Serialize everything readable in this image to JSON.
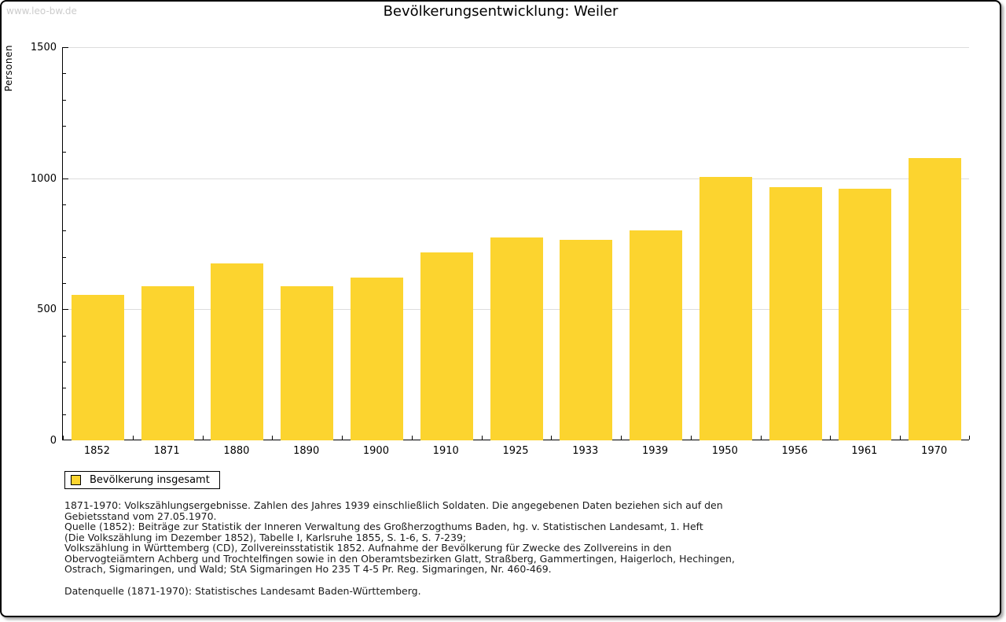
{
  "watermark": "www.leo-bw.de",
  "chart_data": {
    "type": "bar",
    "title": "Bevölkerungsentwicklung: Weiler",
    "ylabel": "Personen",
    "ylim": [
      0,
      1500
    ],
    "ytick_major_step": 500,
    "ytick_minor_step": 100,
    "grid": "horizontal gridlines at 500, 1000, 1500",
    "legend_position": "bottom-left",
    "categories": [
      "1852",
      "1871",
      "1880",
      "1890",
      "1900",
      "1910",
      "1925",
      "1933",
      "1939",
      "1950",
      "1956",
      "1961",
      "1970"
    ],
    "series": [
      {
        "name": "Bevölkerung insgesamt",
        "values": [
          555,
          587,
          676,
          587,
          620,
          718,
          775,
          764,
          800,
          1006,
          965,
          961,
          1076
        ]
      }
    ],
    "bar_color": "#FCD42F",
    "gridline_color": "#dddddd"
  },
  "legend": {
    "label": "Bevölkerung insgesamt"
  },
  "footnotes": {
    "lines": [
      "1871-1970: Volkszählungsergebnisse. Zahlen des Jahres 1939 einschließlich Soldaten. Die angegebenen Daten beziehen sich auf den",
      "Gebietsstand vom 27.05.1970.",
      "Quelle (1852): Beiträge zur Statistik der Inneren Verwaltung des Großherzogthums Baden, hg. v. Statistischen Landesamt, 1. Heft",
      "(Die Volkszählung im Dezember 1852), Tabelle I, Karlsruhe 1855, S. 1-6, S. 7-239;",
      "Volkszählung in Württemberg (CD), Zollvereinsstatistik 1852. Aufnahme der Bevölkerung für Zwecke des Zollvereins in den",
      "Obervogteiämtern Achberg und Trochtelfingen sowie in den Oberamtsbezirken Glatt, Straßberg, Gammertingen, Haigerloch, Hechingen,",
      "Ostrach, Sigmaringen, und Wald; StA Sigmaringen Ho 235 T 4-5 Pr. Reg. Sigmaringen, Nr. 460-469."
    ],
    "datasource": "Datenquelle (1871-1970): Statistisches Landesamt Baden-Württemberg."
  }
}
